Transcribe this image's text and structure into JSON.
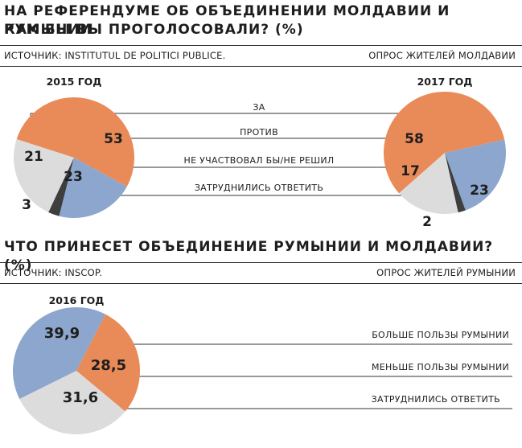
{
  "section1": {
    "title_line1": "НА РЕФЕРЕНДУМЕ ОБ ОБЪЕДИНЕНИИ МОЛДАВИИ И РУМЫНИИ",
    "title_line2": "КАК БЫ ВЫ ПРОГОЛОСОВАЛИ? (%)",
    "source": "ИСТОЧНИК: INSTITUTUL DE POLITICI PUBLICE.",
    "poll": "ОПРОС ЖИТЕЛЕЙ МОЛДАВИИ"
  },
  "section2": {
    "title": "ЧТО ПРИНЕСЕТ ОБЪЕДИНЕНИЕ РУМЫНИИ И МОЛДАВИИ? (%)",
    "source": "ИСТОЧНИК: INSCOP.",
    "poll": "ОПРОС ЖИТЕЛЕЙ РУМЫНИИ"
  },
  "colors": {
    "za": "#8da6cd",
    "protiv": "#e98a59",
    "ne_uch": "#dcdcdc",
    "zatr": "#3e3e3e"
  },
  "chart_data": [
    {
      "type": "pie",
      "title": "2015 ГОД",
      "categories": [
        "ЗА",
        "ПРОТИВ",
        "НЕ УЧАСТВОВАЛ БЫ/НЕ РЕШИЛ",
        "ЗАТРУДНИЛИСЬ ОТВЕТИТЬ"
      ],
      "values": [
        21,
        53,
        23,
        3
      ],
      "labels": [
        "21",
        "53",
        "23",
        "3"
      ]
    },
    {
      "type": "pie",
      "title": "2017 ГОД",
      "categories": [
        "ЗА",
        "ПРОТИВ",
        "НЕ УЧАСТВОВАЛ БЫ/НЕ РЕШИЛ",
        "ЗАТРУДНИЛИСЬ ОТВЕТИТЬ"
      ],
      "values": [
        23,
        58,
        17,
        2
      ],
      "labels": [
        "23",
        "58",
        "17",
        "2"
      ]
    },
    {
      "type": "pie",
      "title": "2016 ГОД",
      "categories": [
        "БОЛЬШЕ ПОЛЬЗЫ РУМЫНИИ",
        "МЕНЬШЕ ПОЛЬЗЫ РУМЫНИИ",
        "ЗАТРУДНИЛИСЬ ОТВЕТИТЬ"
      ],
      "values": [
        39.9,
        28.5,
        31.6
      ],
      "labels": [
        "39,9",
        "28,5",
        "31,6"
      ]
    }
  ]
}
